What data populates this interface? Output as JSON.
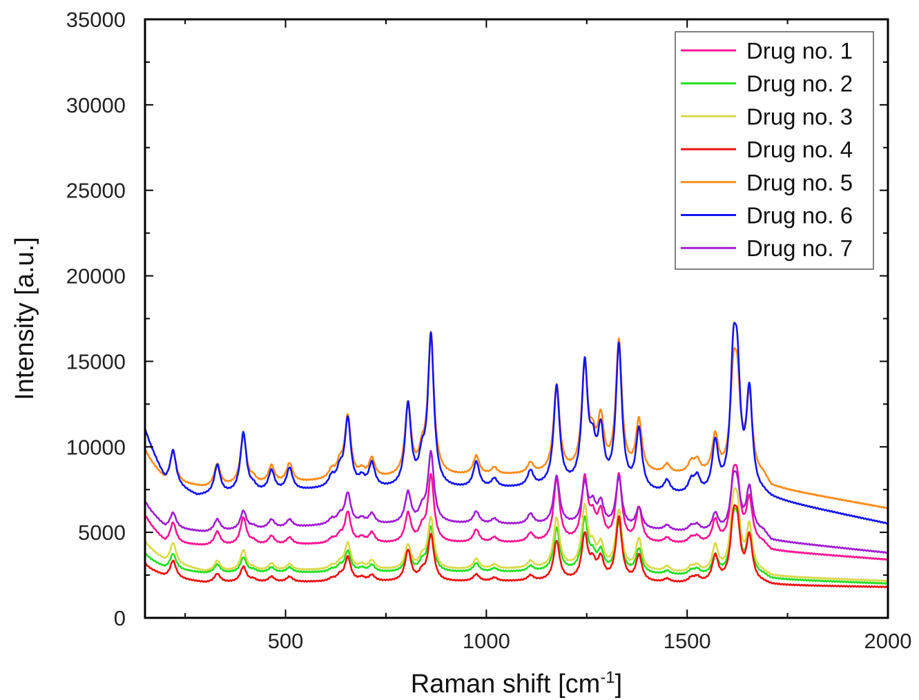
{
  "chart_data": {
    "type": "line",
    "xlabel": "Raman shift [cm",
    "xlabel_sup": "-1",
    "xlabel_end": "]",
    "ylabel": "Intensity [a.u.]",
    "xlim": [
      150,
      2000
    ],
    "ylim": [
      0,
      35000
    ],
    "xticks": [
      500,
      1000,
      1500,
      2000
    ],
    "yticks": [
      0,
      5000,
      10000,
      15000,
      20000,
      25000,
      30000,
      35000
    ],
    "grid": false,
    "legend_position": "top-right",
    "peaks_cm": [
      150,
      220,
      330,
      395,
      420,
      465,
      510,
      615,
      635,
      655,
      690,
      715,
      805,
      840,
      862,
      975,
      1020,
      1110,
      1175,
      1245,
      1265,
      1285,
      1330,
      1380,
      1450,
      1510,
      1525,
      1570,
      1615,
      1625,
      1655
    ],
    "series": [
      {
        "name": "Drug no. 1",
        "color": "#ff1493",
        "baseline": [
          [
            150,
            5800
          ],
          [
            200,
            4400
          ],
          [
            300,
            4200
          ],
          [
            600,
            4300
          ],
          [
            900,
            4350
          ],
          [
            1200,
            4400
          ],
          [
            1500,
            4300
          ],
          [
            1690,
            4300
          ],
          [
            1710,
            3900
          ],
          [
            2000,
            3400
          ]
        ],
        "peak_heights": [
          200,
          1200,
          800,
          1600,
          200,
          500,
          400,
          250,
          400,
          1800,
          300,
          600,
          1700,
          700,
          3900,
          750,
          300,
          500,
          3700,
          3600,
          1200,
          1600,
          3900,
          2000,
          300,
          300,
          350,
          1300,
          3000,
          2800,
          2500
        ]
      },
      {
        "name": "Drug no. 2",
        "color": "#22e022",
        "baseline": [
          [
            150,
            3600
          ],
          [
            200,
            2900
          ],
          [
            300,
            2600
          ],
          [
            600,
            2650
          ],
          [
            900,
            2650
          ],
          [
            1200,
            2700
          ],
          [
            1500,
            2450
          ],
          [
            1690,
            2450
          ],
          [
            1710,
            2250
          ],
          [
            2000,
            2000
          ]
        ],
        "peak_heights": [
          150,
          900,
          500,
          900,
          150,
          300,
          300,
          150,
          300,
          1200,
          200,
          400,
          1200,
          500,
          2600,
          500,
          200,
          300,
          2500,
          3000,
          800,
          1100,
          2900,
          1400,
          200,
          250,
          300,
          1100,
          2500,
          2400,
          2200
        ]
      },
      {
        "name": "Drug no. 3",
        "color": "#d9d94a",
        "baseline": [
          [
            150,
            4300
          ],
          [
            200,
            3300
          ],
          [
            300,
            2700
          ],
          [
            600,
            2800
          ],
          [
            900,
            2800
          ],
          [
            1200,
            2900
          ],
          [
            1500,
            2600
          ],
          [
            1690,
            2600
          ],
          [
            1710,
            2400
          ],
          [
            2000,
            2150
          ]
        ],
        "peak_heights": [
          150,
          1200,
          600,
          1200,
          150,
          400,
          350,
          200,
          350,
          1500,
          250,
          500,
          1400,
          600,
          3000,
          600,
          250,
          400,
          2900,
          3500,
          1000,
          1300,
          3400,
          1800,
          300,
          300,
          350,
          1500,
          3200,
          3000,
          2600
        ]
      },
      {
        "name": "Drug no. 4",
        "color": "#ee1111",
        "baseline": [
          [
            150,
            3000
          ],
          [
            200,
            2400
          ],
          [
            300,
            2050
          ],
          [
            600,
            2100
          ],
          [
            900,
            2100
          ],
          [
            1200,
            2150
          ],
          [
            1500,
            2000
          ],
          [
            1690,
            2000
          ],
          [
            1710,
            1900
          ],
          [
            2000,
            1800
          ]
        ],
        "peak_heights": [
          150,
          1000,
          500,
          900,
          150,
          300,
          300,
          150,
          300,
          1400,
          200,
          350,
          1800,
          450,
          2700,
          400,
          200,
          300,
          2300,
          2600,
          900,
          1200,
          3700,
          1500,
          200,
          250,
          300,
          1500,
          2900,
          2800,
          2600
        ]
      },
      {
        "name": "Drug no. 5",
        "color": "#ff8c1a",
        "baseline": [
          [
            150,
            9600
          ],
          [
            200,
            8000
          ],
          [
            300,
            7600
          ],
          [
            600,
            8000
          ],
          [
            900,
            8250
          ],
          [
            1200,
            8400
          ],
          [
            1500,
            8350
          ],
          [
            1690,
            8200
          ],
          [
            1710,
            7600
          ],
          [
            2000,
            6400
          ]
        ],
        "peak_heights": [
          200,
          1800,
          1300,
          2900,
          300,
          1000,
          1100,
          500,
          800,
          3600,
          400,
          1100,
          4200,
          1100,
          8200,
          1100,
          400,
          600,
          5100,
          6100,
          1500,
          2900,
          7600,
          3000,
          500,
          600,
          700,
          2200,
          4900,
          4400,
          4500
        ]
      },
      {
        "name": "Drug no. 6",
        "color": "#1414ee",
        "baseline": [
          [
            150,
            10800
          ],
          [
            200,
            8000
          ],
          [
            280,
            7100
          ],
          [
            600,
            7500
          ],
          [
            900,
            7500
          ],
          [
            1200,
            7600
          ],
          [
            1500,
            7100
          ],
          [
            1690,
            7100
          ],
          [
            1710,
            6900
          ],
          [
            2000,
            5500
          ]
        ],
        "peak_heights": [
          200,
          2000,
          1700,
          3500,
          300,
          1200,
          1300,
          600,
          900,
          4000,
          500,
          1400,
          4800,
          1400,
          8800,
          1500,
          500,
          900,
          5800,
          7000,
          1900,
          3100,
          8300,
          3500,
          700,
          700,
          900,
          2900,
          6700,
          5900,
          5800
        ]
      },
      {
        "name": "Drug no. 7",
        "color": "#a11bd4",
        "baseline": [
          [
            150,
            6600
          ],
          [
            200,
            5300
          ],
          [
            300,
            5000
          ],
          [
            600,
            5400
          ],
          [
            900,
            5500
          ],
          [
            1200,
            5400
          ],
          [
            1500,
            5000
          ],
          [
            1690,
            5000
          ],
          [
            1710,
            4500
          ],
          [
            2000,
            3800
          ]
        ],
        "peak_heights": [
          200,
          900,
          700,
          1100,
          150,
          500,
          450,
          300,
          450,
          1800,
          300,
          600,
          1800,
          700,
          4100,
          700,
          300,
          600,
          2800,
          2400,
          1100,
          1300,
          2900,
          1200,
          300,
          300,
          350,
          1000,
          2400,
          2000,
          2500
        ]
      }
    ]
  }
}
